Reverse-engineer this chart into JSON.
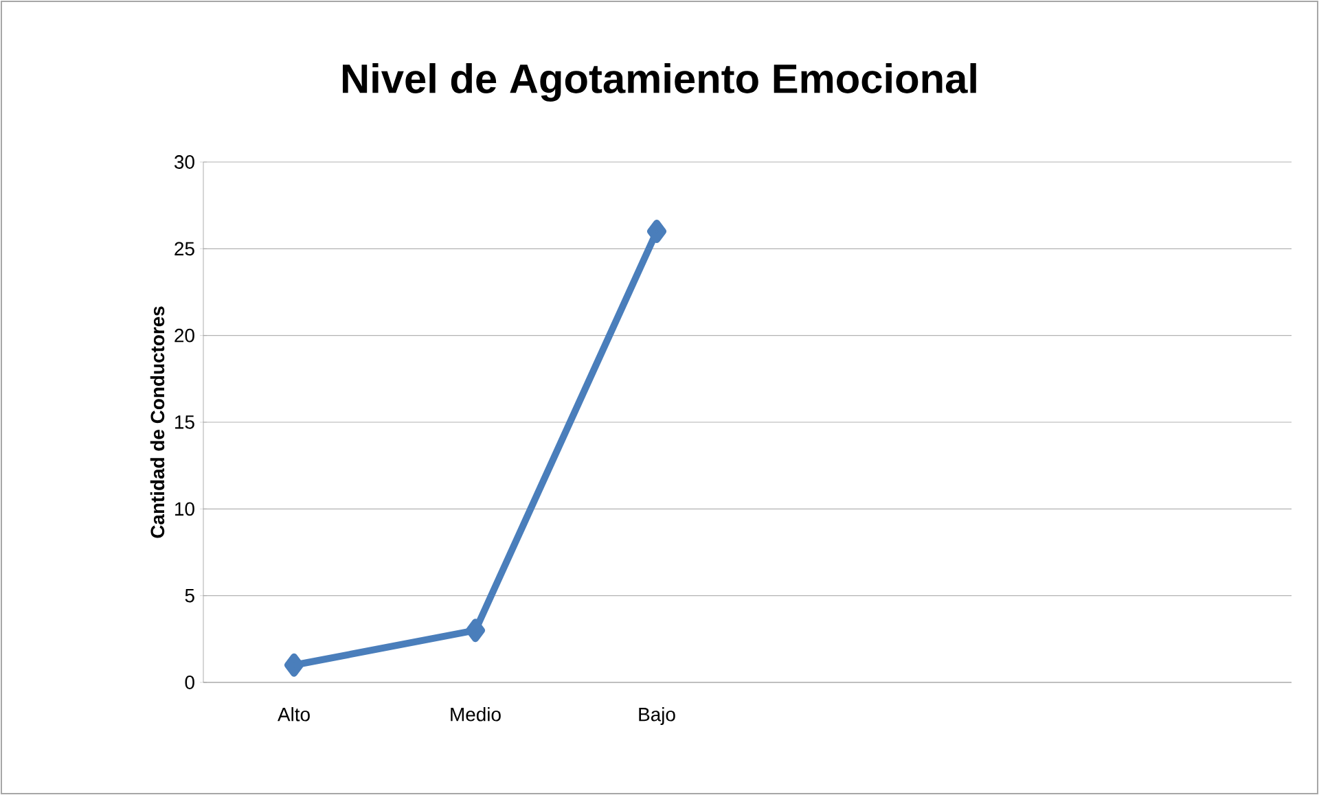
{
  "chart_data": {
    "type": "line",
    "title": "Nivel de Agotamiento Emocional",
    "ylabel": "Cantidad de Conductores",
    "categories": [
      "Alto",
      "Medio",
      "Bajo",
      null,
      null,
      null
    ],
    "series": [
      {
        "color": "#4a7ebb",
        "values": [
          1,
          3,
          26,
          null,
          null,
          null
        ]
      }
    ],
    "ylim": [
      0,
      30
    ],
    "yticks": [
      0,
      5,
      10,
      15,
      20,
      25,
      30
    ],
    "grid": "y",
    "marker": "diamond",
    "line_style": "solid"
  }
}
